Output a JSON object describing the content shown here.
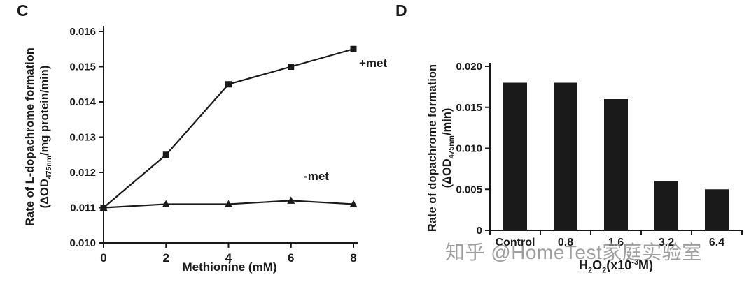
{
  "figure": {
    "watermark": "知乎 @HomeTest家庭实验室",
    "ink_color": "#1a1a1a",
    "watermark_color": "#8f8f8f",
    "background": "#ffffff"
  },
  "panel_c": {
    "label": "C",
    "ylabel_line1": "Rate of L-dopachrome formation",
    "ylabel_pre": "(ΔOD",
    "ylabel_sub": "475nm",
    "ylabel_post": "/mg protein/min)",
    "xlabel": "Methionine (mM)"
  },
  "panel_d": {
    "label": "D",
    "ylabel_line1": "Rate of dopachrome formation",
    "ylabel_pre": "(ΔOD",
    "ylabel_sub": "475nm",
    "ylabel_post": "/min)",
    "xlabel_h": "H",
    "xlabel_sub1": "2",
    "xlabel_o": "O",
    "xlabel_sub2": "2",
    "xlabel_mid": "(x10",
    "xlabel_sup": "-3",
    "xlabel_end": "M)"
  },
  "chart_data": [
    {
      "type": "line",
      "panel": "C",
      "title": "",
      "xlabel": "Methionine (mM)",
      "ylabel": "Rate of L-dopachrome formation (ΔOD475nm/mg protein/min)",
      "x": [
        0,
        2,
        4,
        6,
        8
      ],
      "xticks": [
        "0",
        "2",
        "4",
        "6",
        "8"
      ],
      "yticks": [
        "0.010",
        "0.011",
        "0.012",
        "0.013",
        "0.014",
        "0.015",
        "0.016"
      ],
      "xlim": [
        0,
        8
      ],
      "ylim": [
        0.01,
        0.016
      ],
      "grid": false,
      "legend_position": "inline-labels",
      "series": [
        {
          "name": "+met",
          "marker": "square",
          "values": [
            0.011,
            0.0125,
            0.0145,
            0.015,
            0.0155
          ]
        },
        {
          "name": "-met",
          "marker": "triangle",
          "values": [
            0.011,
            0.0111,
            0.0111,
            0.0112,
            0.0111
          ]
        }
      ]
    },
    {
      "type": "bar",
      "panel": "D",
      "title": "",
      "xlabel": "H2O2(x10-3M)",
      "ylabel": "Rate of dopachrome formation (ΔOD475nm/min)",
      "categories": [
        "Control",
        "0.8",
        "1.6",
        "3.2",
        "6.4"
      ],
      "values": [
        0.018,
        0.018,
        0.016,
        0.006,
        0.005
      ],
      "yticks": [
        "0",
        "0.005",
        "0.010",
        "0.015",
        "0.020"
      ],
      "ylim": [
        0,
        0.02
      ],
      "grid": false,
      "bar_color": "#1a1a1a"
    }
  ]
}
